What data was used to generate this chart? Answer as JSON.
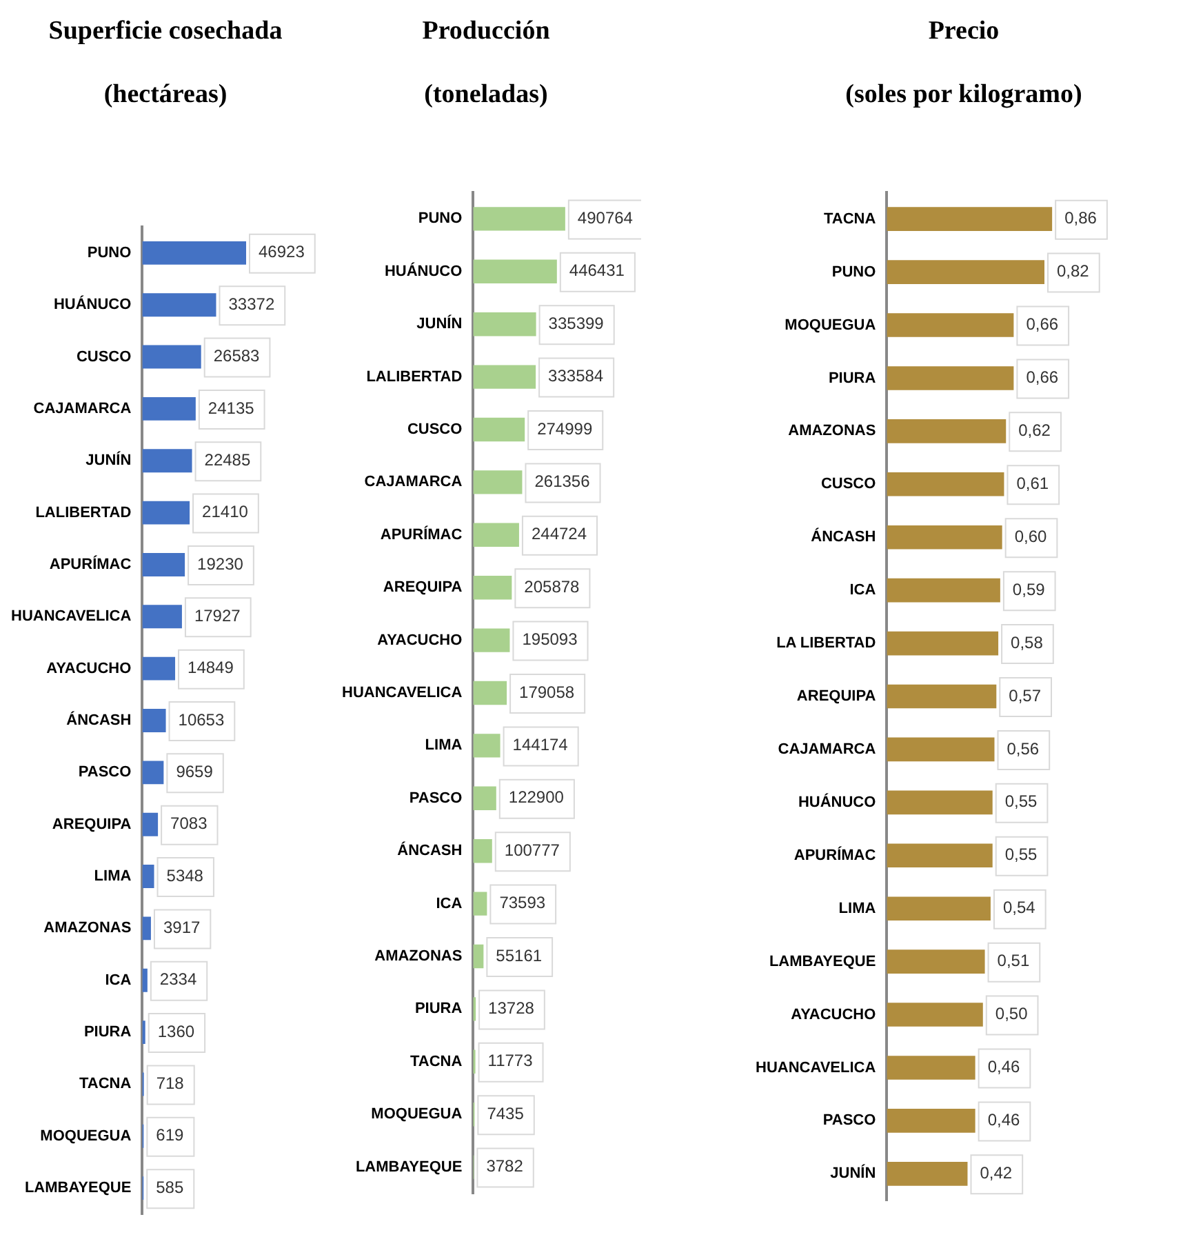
{
  "chart_data": [
    {
      "type": "bar",
      "orientation": "horizontal",
      "title": "Superficie cosechada",
      "subtitle": "(hectáreas)",
      "tick_labels": "y",
      "data_labels": true,
      "color": "#4472c4",
      "categories": [
        "PUNO",
        "HUÁNUCO",
        "CUSCO",
        "CAJAMARCA",
        "JUNÍN",
        "LALIBERTAD",
        "APURÍMAC",
        "HUANCAVELICA",
        "AYACUCHO",
        "ÁNCASH",
        "PASCO",
        "AREQUIPA",
        "LIMA",
        "AMAZONAS",
        "ICA",
        "PIURA",
        "TACNA",
        "MOQUEGUA",
        "LAMBAYEQUE"
      ],
      "values": [
        46923,
        33372,
        26583,
        24135,
        22485,
        21410,
        19230,
        17927,
        14849,
        10653,
        9659,
        7083,
        5348,
        3917,
        2334,
        1360,
        718,
        619,
        585
      ]
    },
    {
      "type": "bar",
      "orientation": "horizontal",
      "title": "Producción",
      "subtitle": "(toneladas)",
      "tick_labels": "y",
      "data_labels": true,
      "color": "#a9d18e",
      "categories": [
        "PUNO",
        "HUÁNUCO",
        "JUNÍN",
        "LALIBERTAD",
        "CUSCO",
        "CAJAMARCA",
        "APURÍMAC",
        "AREQUIPA",
        "AYACUCHO",
        "HUANCAVELICA",
        "LIMA",
        "PASCO",
        "ÁNCASH",
        "ICA",
        "AMAZONAS",
        "PIURA",
        "TACNA",
        "MOQUEGUA",
        "LAMBAYEQUE"
      ],
      "values": [
        490764,
        446431,
        335399,
        333584,
        274999,
        261356,
        244724,
        205878,
        195093,
        179058,
        144174,
        122900,
        100777,
        73593,
        55161,
        13728,
        11773,
        7435,
        3782
      ]
    },
    {
      "type": "bar",
      "orientation": "horizontal",
      "title": "Precio",
      "subtitle": "(soles por kilogramo)",
      "tick_labels": "y",
      "color": "#b08d3e",
      "categories": [
        "TACNA",
        "PUNO",
        "MOQUEGUA",
        "PIURA",
        "AMAZONAS",
        "CUSCO",
        "ÁNCASH",
        "ICA",
        "LA LIBERTAD",
        "AREQUIPA",
        "CAJAMARCA",
        "HUÁNUCO",
        "APURÍMAC",
        "LIMA",
        "LAMBAYEQUE",
        "AYACUCHO",
        "HUANCAVELICA",
        "PASCO",
        "JUNÍN"
      ],
      "values": [
        0.86,
        0.82,
        0.66,
        0.66,
        0.62,
        0.61,
        0.6,
        0.59,
        0.58,
        0.57,
        0.56,
        0.55,
        0.55,
        0.54,
        0.51,
        0.5,
        0.46,
        0.46,
        0.42
      ],
      "value_labels": [
        "0,86",
        "0,82",
        "0,66",
        "0,66",
        "0,62",
        "0,61",
        "0,60",
        "0,59",
        "0,58",
        "0,57",
        "0,56",
        "0,55",
        "0,55",
        "0,54",
        "0,51",
        "0,50",
        "0,46",
        "0,46",
        "0,42"
      ]
    }
  ]
}
